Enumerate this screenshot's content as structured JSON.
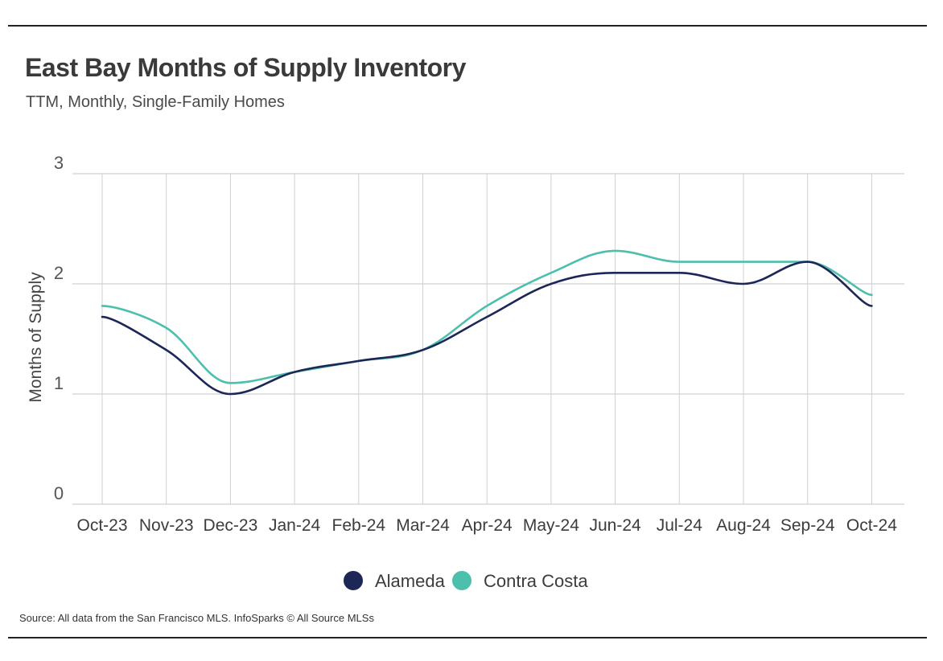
{
  "title": "East Bay Months of Supply Inventory",
  "subtitle": "TTM, Monthly, Single-Family Homes",
  "source": "Source:  All data from the San Francisco MLS. InfoSparks © All Source MLSs",
  "chart_data": {
    "type": "line",
    "categories": [
      "Oct-23",
      "Nov-23",
      "Dec-23",
      "Jan-24",
      "Feb-24",
      "Mar-24",
      "Apr-24",
      "May-24",
      "Jun-24",
      "Jul-24",
      "Aug-24",
      "Sep-24",
      "Oct-24"
    ],
    "series": [
      {
        "name": "Alameda",
        "color": "#1c2757",
        "values": [
          1.7,
          1.4,
          1.0,
          1.2,
          1.3,
          1.4,
          1.7,
          2.0,
          2.1,
          2.1,
          2.0,
          2.2,
          1.8
        ]
      },
      {
        "name": "Contra Costa",
        "color": "#4dbfad",
        "values": [
          1.8,
          1.6,
          1.1,
          1.2,
          1.3,
          1.4,
          1.8,
          2.1,
          2.3,
          2.2,
          2.2,
          2.2,
          1.9
        ]
      }
    ],
    "ylabel": "Months of Supply",
    "xlabel": "",
    "ylim": [
      0,
      3
    ],
    "yticks": [
      0,
      1,
      2,
      3
    ],
    "grid": true,
    "legend": "bottom-center"
  }
}
